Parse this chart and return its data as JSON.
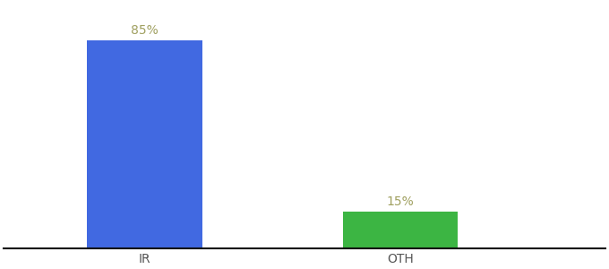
{
  "categories": [
    "IR",
    "OTH"
  ],
  "values": [
    85,
    15
  ],
  "bar_colors": [
    "#4169e1",
    "#3cb543"
  ],
  "value_labels": [
    "85%",
    "15%"
  ],
  "label_color": "#a0a060",
  "bar_width": 0.45,
  "x_positions": [
    0,
    1
  ],
  "xlim": [
    -0.55,
    1.8
  ],
  "ylim": [
    0,
    100
  ],
  "background_color": "#ffffff",
  "axis_line_color": "#111111",
  "tick_label_color": "#555555",
  "label_fontsize": 10,
  "value_fontsize": 10
}
